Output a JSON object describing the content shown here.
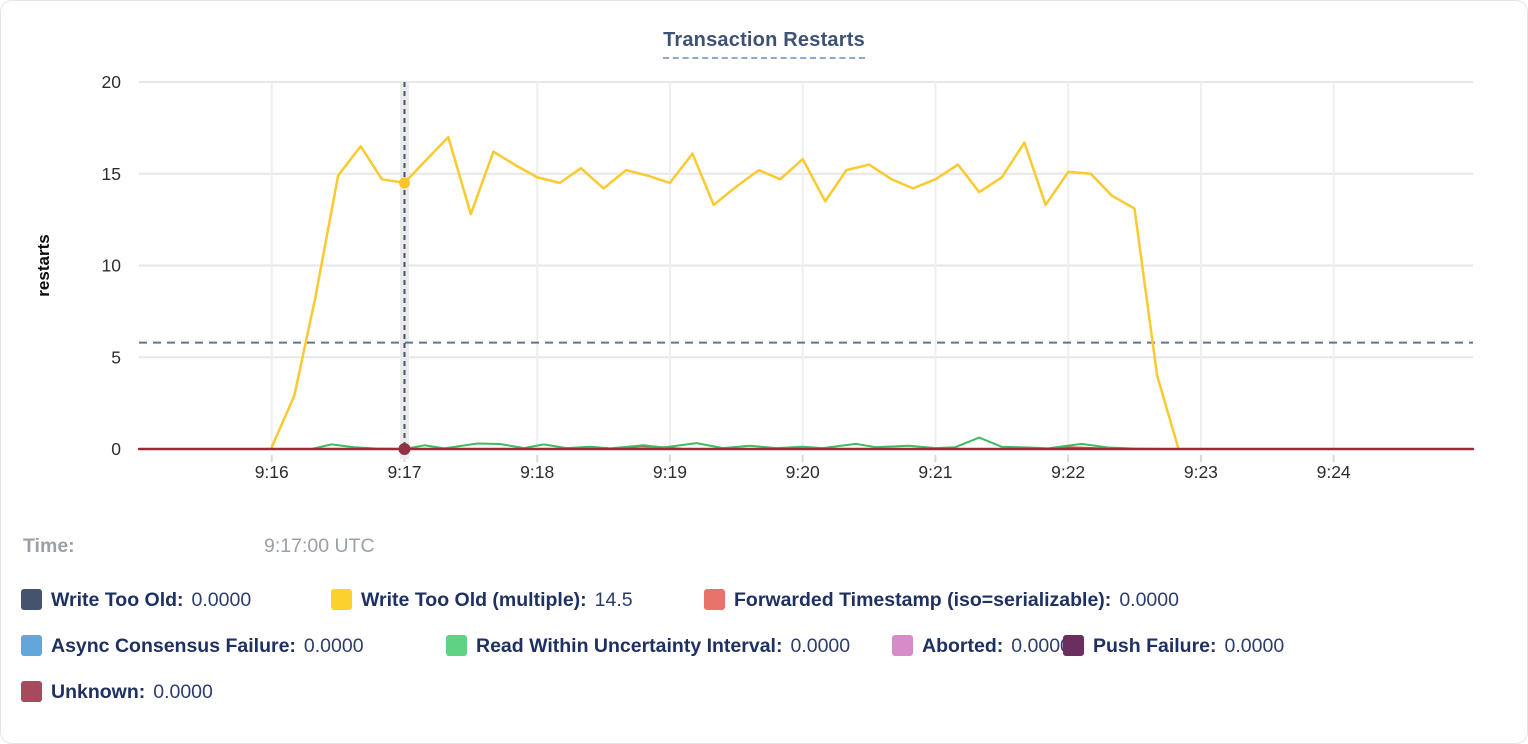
{
  "chart": {
    "title": "Transaction Restarts"
  },
  "chart_data": {
    "type": "line",
    "title": "Transaction Restarts",
    "ylabel": "restarts",
    "ylim": [
      0,
      20
    ],
    "yticks": [
      0,
      5,
      10,
      15,
      20
    ],
    "x_unit": "clock time UTC (stored as decimal minutes after 9:00)",
    "x_domain": [
      15.0,
      25.05
    ],
    "x_ticks": [
      {
        "t": 16,
        "label": "9:16"
      },
      {
        "t": 17,
        "label": "9:17"
      },
      {
        "t": 18,
        "label": "9:18"
      },
      {
        "t": 19,
        "label": "9:19"
      },
      {
        "t": 20,
        "label": "9:20"
      },
      {
        "t": 21,
        "label": "9:21"
      },
      {
        "t": 22,
        "label": "9:22"
      },
      {
        "t": 23,
        "label": "9:23"
      },
      {
        "t": 24,
        "label": "9:24"
      }
    ],
    "grid": true,
    "average_line": {
      "value": 5.8,
      "color": "#5e7891",
      "style": "dashed"
    },
    "crosshair": {
      "t": 17.0,
      "time": "9:17:00 UTC",
      "line_color": "#42586f",
      "band_color": "#ebebeb",
      "points": [
        {
          "series": "Write Too Old (multiple)",
          "value": 14.5,
          "color": "#fbc52c",
          "r": 5.5
        },
        {
          "series": "Unknown",
          "value": 0,
          "color": "#8e3246",
          "r": 6
        }
      ]
    },
    "series": [
      {
        "name": "Write Too Old",
        "color": "#46536e",
        "width": 2,
        "points": [
          [
            15.0,
            0
          ],
          [
            25.05,
            0
          ]
        ]
      },
      {
        "name": "Write Too Old (multiple)",
        "color": "#fbc930",
        "width": 2.5,
        "points": [
          [
            16.0,
            0.1
          ],
          [
            16.17,
            2.9
          ],
          [
            16.33,
            8.3
          ],
          [
            16.5,
            14.9
          ],
          [
            16.67,
            16.5
          ],
          [
            16.83,
            14.7
          ],
          [
            17.0,
            14.5
          ],
          [
            17.17,
            15.8
          ],
          [
            17.33,
            17.0
          ],
          [
            17.5,
            12.8
          ],
          [
            17.67,
            16.2
          ],
          [
            17.83,
            15.5
          ],
          [
            18.0,
            14.8
          ],
          [
            18.17,
            14.5
          ],
          [
            18.33,
            15.3
          ],
          [
            18.5,
            14.2
          ],
          [
            18.67,
            15.2
          ],
          [
            18.83,
            14.9
          ],
          [
            19.0,
            14.5
          ],
          [
            19.17,
            16.1
          ],
          [
            19.33,
            13.3
          ],
          [
            19.5,
            14.3
          ],
          [
            19.67,
            15.2
          ],
          [
            19.83,
            14.7
          ],
          [
            20.0,
            15.8
          ],
          [
            20.17,
            13.5
          ],
          [
            20.33,
            15.2
          ],
          [
            20.5,
            15.5
          ],
          [
            20.67,
            14.7
          ],
          [
            20.83,
            14.2
          ],
          [
            21.0,
            14.7
          ],
          [
            21.17,
            15.5
          ],
          [
            21.33,
            14.0
          ],
          [
            21.5,
            14.8
          ],
          [
            21.67,
            16.7
          ],
          [
            21.83,
            13.3
          ],
          [
            22.0,
            15.1
          ],
          [
            22.17,
            15.0
          ],
          [
            22.33,
            13.8
          ],
          [
            22.5,
            13.1
          ],
          [
            22.67,
            4.0
          ],
          [
            22.83,
            0.05
          ]
        ]
      },
      {
        "name": "Forwarded Timestamp (iso=serializable)",
        "color": "#da4f4b",
        "width": 2,
        "points": [
          [
            15.0,
            0
          ],
          [
            18.6,
            0
          ],
          [
            18.78,
            0.15
          ],
          [
            18.95,
            0.1
          ],
          [
            19.1,
            0
          ],
          [
            21.85,
            0
          ],
          [
            22.0,
            0.1
          ],
          [
            22.2,
            0.05
          ],
          [
            22.35,
            0
          ],
          [
            25.05,
            0
          ]
        ]
      },
      {
        "name": "Async Consensus Failure",
        "color": "#62a6da",
        "width": 2,
        "points": [
          [
            15.0,
            0
          ],
          [
            25.05,
            0
          ]
        ]
      },
      {
        "name": "Read Within Uncertainty Interval",
        "color": "#42ba62",
        "width": 2,
        "points": [
          [
            15.0,
            0
          ],
          [
            16.3,
            0
          ],
          [
            16.45,
            0.25
          ],
          [
            16.62,
            0.1
          ],
          [
            16.8,
            0.02
          ],
          [
            17.0,
            0
          ],
          [
            17.15,
            0.2
          ],
          [
            17.3,
            0.03
          ],
          [
            17.55,
            0.3
          ],
          [
            17.72,
            0.27
          ],
          [
            17.9,
            0.05
          ],
          [
            18.05,
            0.25
          ],
          [
            18.22,
            0.05
          ],
          [
            18.4,
            0.12
          ],
          [
            18.55,
            0.03
          ],
          [
            18.8,
            0.2
          ],
          [
            18.95,
            0.08
          ],
          [
            19.2,
            0.32
          ],
          [
            19.4,
            0.05
          ],
          [
            19.6,
            0.18
          ],
          [
            19.8,
            0.05
          ],
          [
            20.0,
            0.12
          ],
          [
            20.15,
            0.05
          ],
          [
            20.4,
            0.28
          ],
          [
            20.55,
            0.1
          ],
          [
            20.8,
            0.18
          ],
          [
            21.0,
            0.05
          ],
          [
            21.15,
            0.1
          ],
          [
            21.33,
            0.62
          ],
          [
            21.5,
            0.12
          ],
          [
            21.7,
            0.08
          ],
          [
            21.85,
            0.03
          ],
          [
            22.1,
            0.28
          ],
          [
            22.3,
            0.08
          ],
          [
            22.5,
            0.02
          ],
          [
            22.7,
            0
          ],
          [
            25.05,
            0
          ]
        ]
      },
      {
        "name": "Aborted",
        "color": "#d78cc9",
        "width": 2,
        "points": [
          [
            15.0,
            0
          ],
          [
            25.05,
            0
          ]
        ]
      },
      {
        "name": "Push Failure",
        "color": "#6b2f5f",
        "width": 2,
        "points": [
          [
            15.0,
            0
          ],
          [
            25.05,
            0
          ]
        ]
      },
      {
        "name": "Unknown",
        "color": "#9c2b3a",
        "width": 2.5,
        "points": [
          [
            15.0,
            0
          ],
          [
            25.05,
            0
          ]
        ]
      }
    ]
  },
  "tooltip": {
    "time_label": "Time:",
    "time_value": "9:17:00 UTC"
  },
  "legend": {
    "rows": [
      {
        "items": [
          {
            "label": "Write Too Old:",
            "value": "0.0000",
            "color": "#46536e"
          },
          {
            "label": "Write Too Old (multiple):",
            "value": "14.5",
            "color": "#fcd12d"
          },
          {
            "label": "Forwarded Timestamp (iso=serializable):",
            "value": "0.0000",
            "color": "#e8736b"
          }
        ]
      },
      {
        "items": [
          {
            "label": "Async Consensus Failure:",
            "value": "0.0000",
            "color": "#62a6da"
          },
          {
            "label": "Read Within Uncertainty Interval:",
            "value": "0.0000",
            "color": "#5fd383"
          },
          {
            "label": "Aborted:",
            "value": "0.0000",
            "color": "#d78cc9"
          },
          {
            "label": "Push Failure:",
            "value": "0.0000",
            "color": "#6b2f5f"
          }
        ]
      },
      {
        "items": [
          {
            "label": "Unknown:",
            "value": "0.0000",
            "color": "#a64a5e"
          }
        ]
      }
    ]
  }
}
